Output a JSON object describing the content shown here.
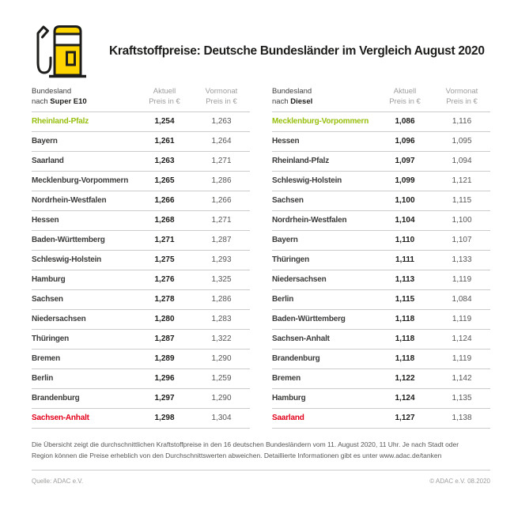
{
  "page_header": {
    "title": "Kraftstoffpreise: Deutsche Bundesländer im Vergleich August 2020",
    "icon": "fuel-pump-icon"
  },
  "colors": {
    "adac_yellow": "#FFD500",
    "best_green": "#97BF0D",
    "worst_red": "#E2001A"
  },
  "chart_data": [
    {
      "type": "table",
      "fuel": "Super E10",
      "header": {
        "col1_line1": "Bundesland",
        "col1_prefix": "nach ",
        "col1_bold": "Super E10",
        "col2_line1": "Aktuell",
        "col2_line2": "Preis in €",
        "col3_line1": "Vormonat",
        "col3_line2": "Preis in €"
      },
      "rows": [
        {
          "state": "Rheinland-Pfalz",
          "aktuell": "1,254",
          "vormonat": "1,263",
          "highlight": "cheapest"
        },
        {
          "state": "Bayern",
          "aktuell": "1,261",
          "vormonat": "1,264",
          "highlight": null
        },
        {
          "state": "Saarland",
          "aktuell": "1,263",
          "vormonat": "1,271",
          "highlight": null
        },
        {
          "state": "Mecklenburg-Vorpommern",
          "aktuell": "1,265",
          "vormonat": "1,286",
          "highlight": null
        },
        {
          "state": "Nordrhein-Westfalen",
          "aktuell": "1,266",
          "vormonat": "1,266",
          "highlight": null
        },
        {
          "state": "Hessen",
          "aktuell": "1,268",
          "vormonat": "1,271",
          "highlight": null
        },
        {
          "state": "Baden-Württemberg",
          "aktuell": "1,271",
          "vormonat": "1,287",
          "highlight": null
        },
        {
          "state": "Schleswig-Holstein",
          "aktuell": "1,275",
          "vormonat": "1,293",
          "highlight": null
        },
        {
          "state": "Hamburg",
          "aktuell": "1,276",
          "vormonat": "1,325",
          "highlight": null
        },
        {
          "state": "Sachsen",
          "aktuell": "1,278",
          "vormonat": "1,286",
          "highlight": null
        },
        {
          "state": "Niedersachsen",
          "aktuell": "1,280",
          "vormonat": "1,283",
          "highlight": null
        },
        {
          "state": "Thüringen",
          "aktuell": "1,287",
          "vormonat": "1,322",
          "highlight": null
        },
        {
          "state": "Bremen",
          "aktuell": "1,289",
          "vormonat": "1,290",
          "highlight": null
        },
        {
          "state": "Berlin",
          "aktuell": "1,296",
          "vormonat": "1,259",
          "highlight": null
        },
        {
          "state": "Brandenburg",
          "aktuell": "1,297",
          "vormonat": "1,290",
          "highlight": null
        },
        {
          "state": "Sachsen-Anhalt",
          "aktuell": "1,298",
          "vormonat": "1,304",
          "highlight": "most-expensive"
        }
      ]
    },
    {
      "type": "table",
      "fuel": "Diesel",
      "header": {
        "col1_line1": "Bundesland",
        "col1_prefix": "nach ",
        "col1_bold": "Diesel",
        "col2_line1": "Aktuell",
        "col2_line2": "Preis in €",
        "col3_line1": "Vormonat",
        "col3_line2": "Preis in €"
      },
      "rows": [
        {
          "state": "Mecklenburg-Vorpommern",
          "aktuell": "1,086",
          "vormonat": "1,116",
          "highlight": "cheapest"
        },
        {
          "state": "Hessen",
          "aktuell": "1,096",
          "vormonat": "1,095",
          "highlight": null
        },
        {
          "state": "Rheinland-Pfalz",
          "aktuell": "1,097",
          "vormonat": "1,094",
          "highlight": null
        },
        {
          "state": "Schleswig-Holstein",
          "aktuell": "1,099",
          "vormonat": "1,121",
          "highlight": null
        },
        {
          "state": "Sachsen",
          "aktuell": "1,100",
          "vormonat": "1,115",
          "highlight": null
        },
        {
          "state": "Nordrhein-Westfalen",
          "aktuell": "1,104",
          "vormonat": "1,100",
          "highlight": null
        },
        {
          "state": "Bayern",
          "aktuell": "1,110",
          "vormonat": "1,107",
          "highlight": null
        },
        {
          "state": "Thüringen",
          "aktuell": "1,111",
          "vormonat": "1,133",
          "highlight": null
        },
        {
          "state": "Niedersachsen",
          "aktuell": "1,113",
          "vormonat": "1,119",
          "highlight": null
        },
        {
          "state": "Berlin",
          "aktuell": "1,115",
          "vormonat": "1,084",
          "highlight": null
        },
        {
          "state": "Baden-Württemberg",
          "aktuell": "1,118",
          "vormonat": "1,119",
          "highlight": null
        },
        {
          "state": "Sachsen-Anhalt",
          "aktuell": "1,118",
          "vormonat": "1,124",
          "highlight": null
        },
        {
          "state": "Brandenburg",
          "aktuell": "1,118",
          "vormonat": "1,119",
          "highlight": null
        },
        {
          "state": "Bremen",
          "aktuell": "1,122",
          "vormonat": "1,142",
          "highlight": null
        },
        {
          "state": "Hamburg",
          "aktuell": "1,124",
          "vormonat": "1,135",
          "highlight": null
        },
        {
          "state": "Saarland",
          "aktuell": "1,127",
          "vormonat": "1,138",
          "highlight": "most-expensive"
        }
      ]
    }
  ],
  "footnote": "Die Übersicht zeigt die durchschnittlichen Kraftstoffpreise in den 16 deutschen Bundesländern vom 11. August 2020, 11 Uhr.  Je nach Stadt oder Region können die Preise erheblich von den Durchschnittswerten abweichen. Detaillierte Informationen gibt es unter www.adac.de/tanken",
  "footer": {
    "source": "Quelle: ADAC e.V.",
    "copyright": "© ADAC e.V. 08.2020"
  }
}
